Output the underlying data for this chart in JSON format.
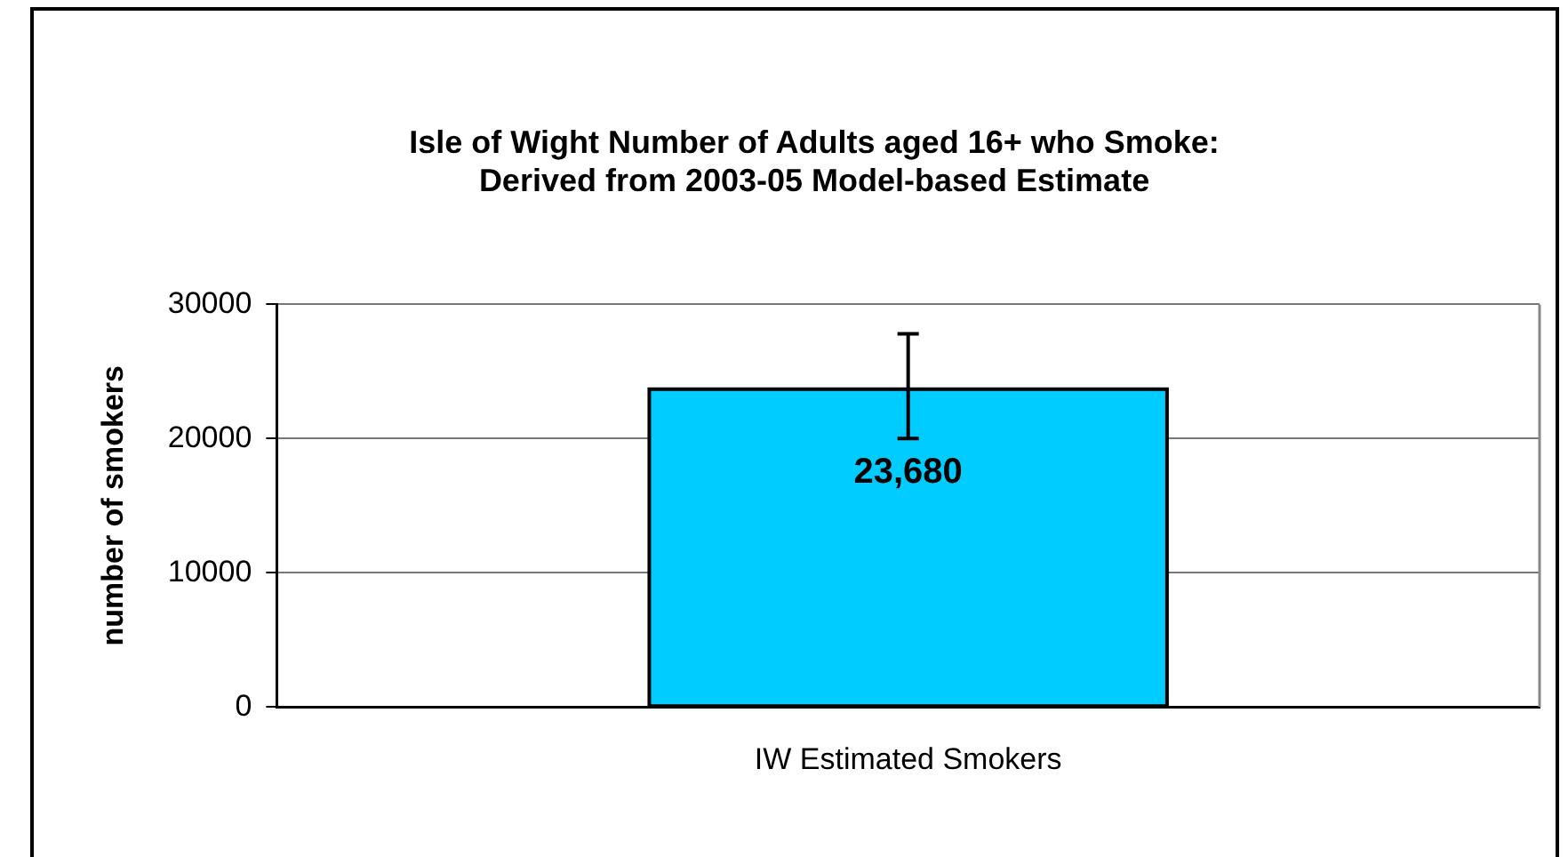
{
  "chart_data": {
    "type": "bar",
    "title": [
      "Isle of Wight Number of Adults aged 16+ who Smoke:",
      "Derived from 2003-05 Model-based Estimate"
    ],
    "ylabel": "number of smokers",
    "categories": [
      "IW Estimated Smokers"
    ],
    "values": [
      23680
    ],
    "color": "#00ccff",
    "errors": [
      [
        20000,
        27800
      ]
    ],
    "value_labels": [
      "23,680"
    ],
    "ylim": [
      0,
      30000
    ],
    "yticks": [
      0,
      10000,
      20000,
      30000
    ],
    "grid": "y",
    "legend": false
  }
}
